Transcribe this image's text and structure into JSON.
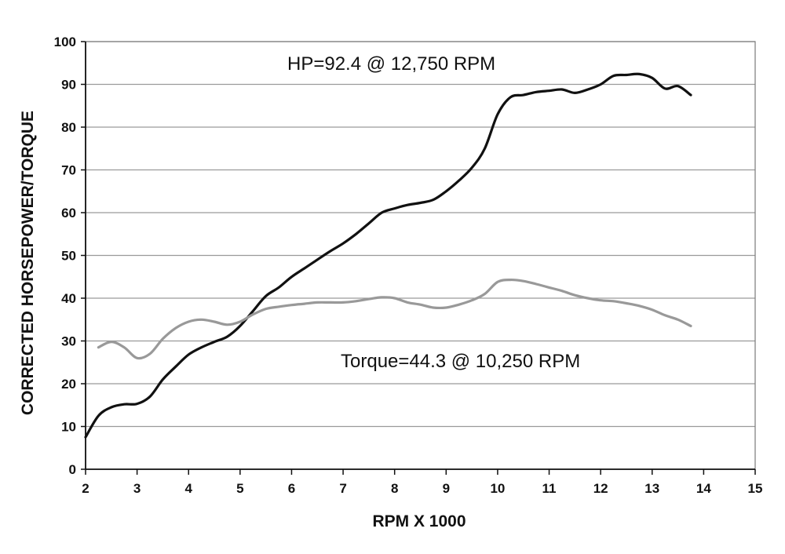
{
  "chart_data": {
    "type": "line",
    "title": "",
    "xlabel": "RPM X 1000",
    "ylabel": "CORRECTED HORSEPOWER/TORQUE",
    "xlim": [
      2,
      15
    ],
    "ylim": [
      0,
      100
    ],
    "xticks": [
      "2",
      "3",
      "4",
      "5",
      "6",
      "7",
      "8",
      "9",
      "10",
      "11",
      "12",
      "13",
      "14",
      "15"
    ],
    "yticks": [
      "0",
      "10",
      "20",
      "30",
      "40",
      "50",
      "60",
      "70",
      "80",
      "90",
      "100"
    ],
    "grid": "horizontal",
    "legend": "none",
    "annotations": {
      "hp": "HP=92.4 @ 12,750 RPM",
      "torque": "Torque=44.3 @ 10,250 RPM"
    },
    "series": [
      {
        "key": "hp",
        "color": "#111111",
        "x": [
          2.0,
          2.25,
          2.5,
          2.75,
          3.0,
          3.25,
          3.5,
          3.75,
          4.0,
          4.25,
          4.5,
          4.75,
          5.0,
          5.25,
          5.5,
          5.75,
          6.0,
          6.25,
          6.5,
          6.75,
          7.0,
          7.25,
          7.5,
          7.75,
          8.0,
          8.25,
          8.5,
          8.75,
          9.0,
          9.25,
          9.5,
          9.75,
          10.0,
          10.25,
          10.5,
          10.75,
          11.0,
          11.25,
          11.5,
          11.75,
          12.0,
          12.25,
          12.5,
          12.75,
          13.0,
          13.25,
          13.5,
          13.75
        ],
        "values": [
          7.5,
          12.5,
          14.5,
          15.2,
          15.3,
          17.0,
          21.0,
          24.0,
          26.8,
          28.5,
          29.8,
          31.0,
          33.5,
          37.0,
          40.5,
          42.5,
          45.0,
          47.0,
          49.0,
          51.0,
          52.8,
          55.0,
          57.5,
          60.0,
          61.0,
          61.8,
          62.3,
          63.0,
          65.0,
          67.5,
          70.5,
          75.0,
          83.0,
          87.0,
          87.5,
          88.2,
          88.5,
          88.8,
          88.0,
          88.8,
          90.0,
          92.0,
          92.2,
          92.4,
          91.5,
          89.0,
          89.6,
          87.5
        ]
      },
      {
        "key": "torque",
        "color": "#999999",
        "x": [
          2.25,
          2.5,
          2.75,
          3.0,
          3.25,
          3.5,
          3.75,
          4.0,
          4.25,
          4.5,
          4.75,
          5.0,
          5.25,
          5.5,
          5.75,
          6.0,
          6.25,
          6.5,
          6.75,
          7.0,
          7.25,
          7.5,
          7.75,
          8.0,
          8.25,
          8.5,
          8.75,
          9.0,
          9.25,
          9.5,
          9.75,
          10.0,
          10.25,
          10.5,
          10.75,
          11.0,
          11.25,
          11.5,
          11.75,
          12.0,
          12.25,
          12.5,
          12.75,
          13.0,
          13.25,
          13.5,
          13.75
        ],
        "values": [
          28.5,
          29.8,
          28.5,
          26.0,
          27.0,
          30.5,
          33.0,
          34.5,
          35.0,
          34.5,
          33.8,
          34.5,
          36.2,
          37.5,
          38.0,
          38.4,
          38.7,
          39.0,
          39.0,
          39.0,
          39.3,
          39.8,
          40.2,
          40.0,
          39.0,
          38.5,
          37.8,
          37.8,
          38.5,
          39.5,
          41.0,
          43.8,
          44.3,
          44.0,
          43.3,
          42.5,
          41.7,
          40.7,
          40.0,
          39.5,
          39.3,
          38.8,
          38.2,
          37.3,
          36.0,
          35.0,
          33.5
        ]
      }
    ]
  }
}
